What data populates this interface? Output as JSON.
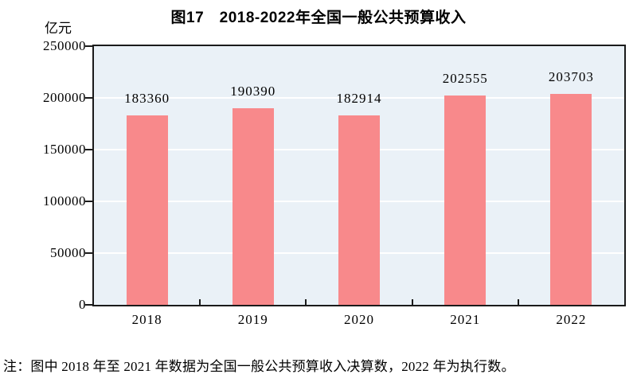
{
  "chart_data": {
    "type": "bar",
    "title": "图17　2018-2022年全国一般公共预算收入",
    "unit_label": "亿元",
    "categories": [
      "2018",
      "2019",
      "2020",
      "2021",
      "2022"
    ],
    "values": [
      183360,
      190390,
      182914,
      202555,
      203703
    ],
    "value_labels": [
      "183360",
      "190390",
      "182914",
      "202555",
      "203703"
    ],
    "ylim": [
      0,
      250000
    ],
    "yticks": [
      0,
      50000,
      100000,
      150000,
      200000,
      250000
    ],
    "ytick_labels": [
      "0",
      "50000",
      "100000",
      "150000",
      "200000",
      "250000"
    ],
    "grid": true,
    "legend": null,
    "colors": {
      "bar": "#F8898B",
      "plot_background": "#EAF1F7",
      "gridline": "#FFFFFF",
      "axis": "#1B1B1B",
      "text": "#000000"
    },
    "note": "注：图中 2018 年至 2021 年数据为全国一般公共预算收入决算数，2022 年为执行数。"
  }
}
